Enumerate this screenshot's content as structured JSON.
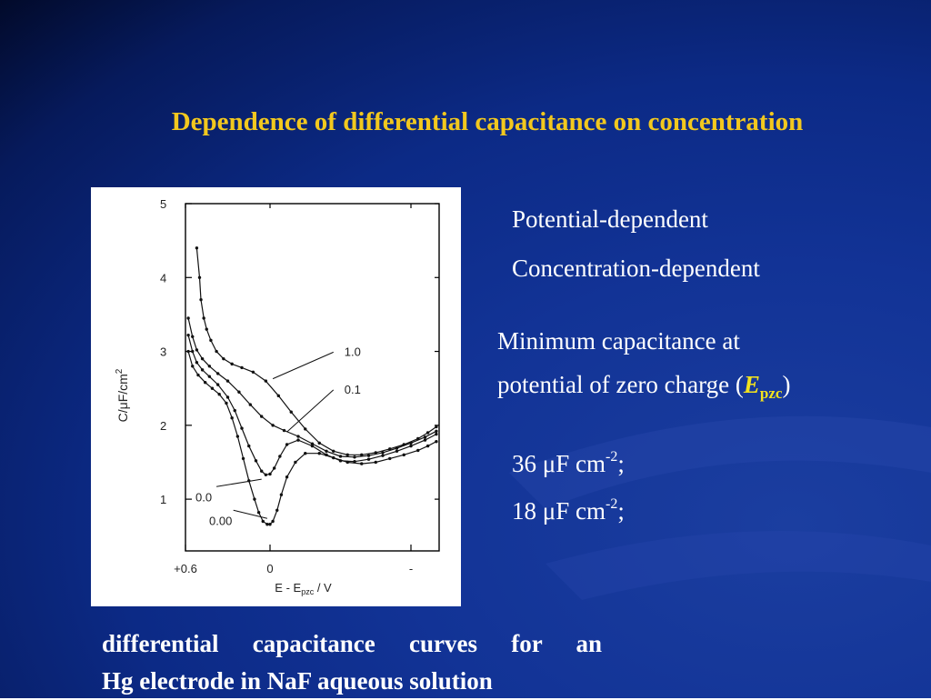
{
  "slide": {
    "title": "Dependence of differential capacitance on concentration",
    "bullets": {
      "potential": "Potential-dependent",
      "concentration": "Concentration-dependent",
      "minimum_line1": "Minimum capacitance at",
      "minimum_line2_prefix": "potential of zero charge (",
      "epzc_symbol": "E",
      "epzc_sub": "pzc",
      "minimum_line2_suffix": ")",
      "value1_number": "36 ",
      "value1_unit": "μF cm",
      "value1_exp": "-2",
      "value1_end": ";",
      "value2_number": "18 ",
      "value2_unit": "μF cm",
      "value2_exp": "-2",
      "value2_end": ";"
    },
    "caption_line1": "differential capacitance curves for an",
    "caption_line2": "Hg electrode in NaF aqueous solution",
    "colors": {
      "title": "#f2c81e",
      "text": "#ffffff",
      "background": "#0c2a86",
      "epzc": "#f2e21e"
    }
  },
  "chart_data": {
    "type": "line",
    "xlabel_main": "E - E",
    "xlabel_sub": "pzc",
    "xlabel_unit": " / V",
    "ylabel_main": "C/μF/cm",
    "ylabel_exp": "2",
    "xlim": [
      0.6,
      -1.2
    ],
    "ylim": [
      0.3,
      5
    ],
    "xticks": [
      {
        "value": 0.6,
        "label": "+0.6"
      },
      {
        "value": 0,
        "label": "0"
      },
      {
        "value": -1.0,
        "label": "-"
      }
    ],
    "yticks": [
      1,
      2,
      3,
      4,
      5
    ],
    "series": [
      {
        "name": "1.0",
        "x": [
          0.52,
          0.5,
          0.49,
          0.47,
          0.45,
          0.42,
          0.38,
          0.33,
          0.27,
          0.2,
          0.12,
          0.03,
          -0.06,
          -0.15,
          -0.25,
          -0.35,
          -0.45,
          -0.55,
          -0.65,
          -0.75,
          -0.85,
          -0.95,
          -1.05,
          -1.12,
          -1.18
        ],
        "y": [
          4.4,
          4.0,
          3.7,
          3.45,
          3.3,
          3.15,
          3.0,
          2.9,
          2.83,
          2.78,
          2.72,
          2.6,
          2.4,
          2.18,
          1.95,
          1.76,
          1.65,
          1.6,
          1.6,
          1.63,
          1.68,
          1.74,
          1.82,
          1.9,
          1.98
        ]
      },
      {
        "name": "0.1",
        "x": [
          0.58,
          0.55,
          0.52,
          0.48,
          0.43,
          0.37,
          0.3,
          0.22,
          0.14,
          0.06,
          -0.02,
          -0.1,
          -0.2,
          -0.3,
          -0.4,
          -0.5,
          -0.6,
          -0.7,
          -0.8,
          -0.9,
          -1.0,
          -1.1,
          -1.18
        ],
        "y": [
          3.45,
          3.2,
          3.02,
          2.9,
          2.8,
          2.7,
          2.6,
          2.45,
          2.28,
          2.12,
          2.0,
          1.93,
          1.85,
          1.75,
          1.65,
          1.58,
          1.57,
          1.59,
          1.63,
          1.69,
          1.76,
          1.84,
          1.92
        ]
      },
      {
        "name": "0.0",
        "x": [
          0.58,
          0.55,
          0.52,
          0.48,
          0.43,
          0.37,
          0.3,
          0.25,
          0.2,
          0.15,
          0.1,
          0.06,
          0.03,
          0.0,
          -0.03,
          -0.07,
          -0.12,
          -0.2,
          -0.3,
          -0.4,
          -0.5,
          -0.6,
          -0.7,
          -0.8,
          -0.9,
          -1.0,
          -1.1,
          -1.18
        ],
        "y": [
          3.22,
          3.0,
          2.85,
          2.75,
          2.66,
          2.55,
          2.38,
          2.2,
          1.96,
          1.72,
          1.52,
          1.38,
          1.33,
          1.34,
          1.42,
          1.58,
          1.74,
          1.8,
          1.72,
          1.6,
          1.52,
          1.51,
          1.54,
          1.59,
          1.65,
          1.72,
          1.8,
          1.88
        ]
      },
      {
        "name": "0.00",
        "x": [
          0.58,
          0.55,
          0.51,
          0.46,
          0.41,
          0.36,
          0.31,
          0.27,
          0.23,
          0.19,
          0.15,
          0.11,
          0.08,
          0.05,
          0.02,
          0.0,
          -0.02,
          -0.05,
          -0.08,
          -0.12,
          -0.18,
          -0.25,
          -0.35,
          -0.45,
          -0.55,
          -0.65,
          -0.75,
          -0.85,
          -0.95,
          -1.05,
          -1.12,
          -1.18
        ],
        "y": [
          3.0,
          2.8,
          2.68,
          2.58,
          2.5,
          2.42,
          2.3,
          2.1,
          1.85,
          1.55,
          1.25,
          1.0,
          0.82,
          0.7,
          0.66,
          0.66,
          0.7,
          0.85,
          1.06,
          1.3,
          1.5,
          1.62,
          1.62,
          1.56,
          1.5,
          1.48,
          1.5,
          1.55,
          1.6,
          1.66,
          1.72,
          1.78
        ]
      }
    ],
    "annotations": [
      {
        "label": "1.0",
        "at": [
          -0.02,
          2.63
        ],
        "to": [
          -0.45,
          2.99
        ]
      },
      {
        "label": "0.1",
        "at": [
          -0.12,
          1.91
        ],
        "to": [
          -0.45,
          2.48
        ]
      },
      {
        "label": "0.0",
        "at": [
          0.06,
          1.27
        ],
        "to": [
          0.38,
          1.17
        ]
      },
      {
        "label": "0.00",
        "at": [
          0.02,
          0.74
        ],
        "to": [
          0.26,
          0.85
        ]
      }
    ]
  }
}
